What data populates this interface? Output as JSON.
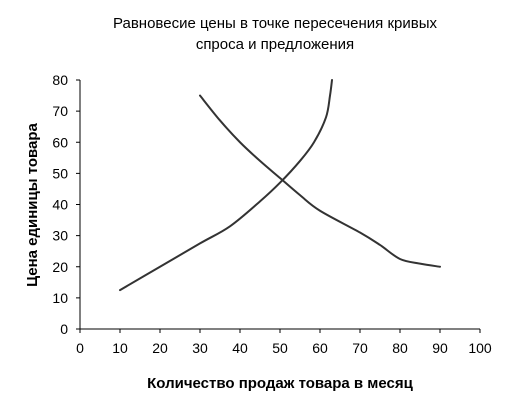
{
  "chart_data": {
    "type": "line",
    "title": [
      "Равновесие цены в точке пересечения кривых",
      "спроса и предложения"
    ],
    "xlabel": "Количество продаж товара в месяц",
    "ylabel": "Цена единицы товара",
    "xlim": [
      0,
      100
    ],
    "ylim": [
      0,
      80
    ],
    "x_ticks": [
      0,
      10,
      20,
      30,
      40,
      50,
      60,
      70,
      80,
      90,
      100
    ],
    "y_ticks": [
      0,
      10,
      20,
      30,
      40,
      50,
      60,
      70,
      80
    ],
    "grid": false,
    "legend": false,
    "line_color": "#333333",
    "series": [
      {
        "points": [
          [
            10,
            12.5
          ],
          [
            20,
            20
          ],
          [
            30,
            27.5
          ],
          [
            37.5,
            33
          ],
          [
            45,
            41
          ],
          [
            50,
            47
          ],
          [
            55,
            54
          ],
          [
            58.5,
            60
          ],
          [
            61.5,
            68
          ],
          [
            62.5,
            75
          ],
          [
            63,
            80
          ]
        ]
      },
      {
        "points": [
          [
            30,
            75
          ],
          [
            35,
            67
          ],
          [
            40,
            60
          ],
          [
            45,
            54
          ],
          [
            50,
            48.5
          ],
          [
            55,
            43
          ],
          [
            60,
            38
          ],
          [
            70,
            31
          ],
          [
            75,
            27
          ],
          [
            80,
            22.5
          ],
          [
            85,
            21
          ],
          [
            90,
            20
          ]
        ]
      }
    ]
  }
}
